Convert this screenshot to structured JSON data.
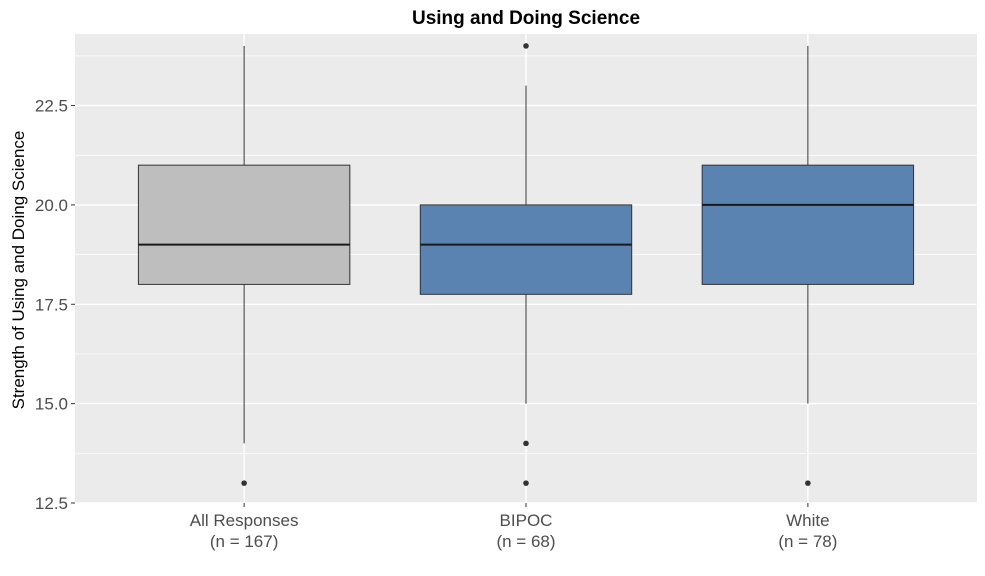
{
  "chart_data": {
    "type": "boxplot",
    "title": "Using and Doing Science",
    "xlabel": "",
    "ylabel": "Strength of Using and Doing Science",
    "ylim": [
      12.5,
      24.3
    ],
    "yticks": [
      12.5,
      15.0,
      17.5,
      20.0,
      22.5
    ],
    "ytick_labels": [
      "12.5",
      "15.0",
      "17.5",
      "20.0",
      "22.5"
    ],
    "grid": true,
    "legend": "none",
    "categories": [
      {
        "label": "All Responses",
        "n_label": "(n = 167)",
        "whisker_low": 14,
        "q1": 18,
        "median": 19,
        "q3": 21,
        "whisker_high": 24,
        "outliers": [
          13
        ],
        "fill": "#bebebe"
      },
      {
        "label": "BIPOC",
        "n_label": "(n = 68)",
        "whisker_low": 15,
        "q1": 17.75,
        "median": 19,
        "q3": 20,
        "whisker_high": 23,
        "outliers": [
          24,
          14,
          13
        ],
        "fill": "#5b83b1"
      },
      {
        "label": "White",
        "n_label": "(n = 78)",
        "whisker_low": 15,
        "q1": 18,
        "median": 20,
        "q3": 21,
        "whisker_high": 24,
        "outliers": [
          13
        ],
        "fill": "#5b83b1"
      }
    ],
    "colors": {
      "panel": "#ebebeb",
      "grid": "#ffffff",
      "box_outline": "#333333",
      "median_line": "#1a1a1a",
      "point": "#333333"
    }
  }
}
